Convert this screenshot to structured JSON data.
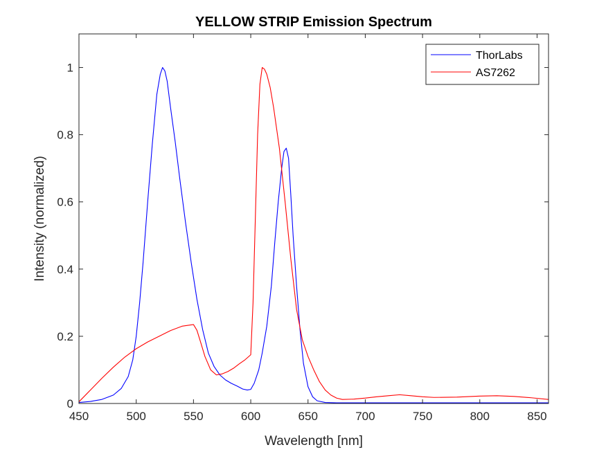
{
  "chart_data": {
    "type": "line",
    "title": "YELLOW STRIP Emission Spectrum",
    "xlabel": "Wavelength [nm]",
    "ylabel": "Intensity (normalized)",
    "xlim": [
      450,
      860
    ],
    "ylim": [
      0,
      1.1
    ],
    "xticks": [
      450,
      500,
      550,
      600,
      650,
      700,
      750,
      800,
      850
    ],
    "yticks": [
      0,
      0.2,
      0.4,
      0.6,
      0.8,
      1
    ],
    "ytick_labels": [
      "0",
      "0.2",
      "0.4",
      "0.6",
      "0.8",
      "1"
    ],
    "grid": false,
    "legend_position": "top-right",
    "series": [
      {
        "name": "ThorLabs",
        "color": "#0000ff",
        "x": [
          450,
          460,
          470,
          480,
          487,
          493,
          497,
          500,
          503,
          506,
          510,
          514,
          518,
          521,
          523,
          525,
          527,
          530,
          534,
          538,
          543,
          548,
          553,
          558,
          563,
          568,
          573,
          578,
          583,
          588,
          593,
          597,
          600,
          603,
          607,
          610,
          614,
          618,
          621,
          624,
          627,
          629,
          631,
          633,
          635,
          637,
          640,
          643,
          646,
          650,
          654,
          658,
          665,
          675,
          690,
          720,
          760,
          800,
          860
        ],
        "y": [
          0.003,
          0.006,
          0.012,
          0.025,
          0.045,
          0.08,
          0.13,
          0.2,
          0.3,
          0.42,
          0.6,
          0.77,
          0.92,
          0.98,
          1.0,
          0.99,
          0.96,
          0.88,
          0.78,
          0.67,
          0.54,
          0.42,
          0.31,
          0.22,
          0.15,
          0.11,
          0.085,
          0.07,
          0.06,
          0.052,
          0.043,
          0.04,
          0.042,
          0.06,
          0.1,
          0.15,
          0.23,
          0.35,
          0.48,
          0.6,
          0.7,
          0.75,
          0.76,
          0.73,
          0.62,
          0.5,
          0.35,
          0.22,
          0.12,
          0.05,
          0.02,
          0.008,
          0.003,
          0.002,
          0.002,
          0.002,
          0.002,
          0.002,
          0.002
        ]
      },
      {
        "name": "AS7262",
        "color": "#ff0000",
        "x": [
          450,
          460,
          470,
          480,
          490,
          500,
          510,
          520,
          530,
          540,
          550,
          553,
          556,
          560,
          565,
          570,
          575,
          580,
          585,
          590,
          595,
          600,
          602,
          604,
          606,
          608,
          610,
          612,
          614,
          617,
          620,
          625,
          630,
          635,
          640,
          645,
          650,
          655,
          660,
          665,
          670,
          675,
          680,
          690,
          700,
          710,
          720,
          730,
          740,
          750,
          760,
          780,
          800,
          815,
          830,
          845,
          860
        ],
        "y": [
          0.005,
          0.04,
          0.075,
          0.108,
          0.138,
          0.163,
          0.183,
          0.2,
          0.217,
          0.23,
          0.235,
          0.218,
          0.185,
          0.14,
          0.1,
          0.085,
          0.088,
          0.095,
          0.105,
          0.118,
          0.13,
          0.145,
          0.3,
          0.55,
          0.8,
          0.95,
          1.0,
          0.995,
          0.98,
          0.94,
          0.88,
          0.76,
          0.6,
          0.43,
          0.28,
          0.19,
          0.14,
          0.1,
          0.065,
          0.04,
          0.025,
          0.016,
          0.012,
          0.013,
          0.016,
          0.02,
          0.023,
          0.026,
          0.023,
          0.02,
          0.018,
          0.019,
          0.022,
          0.023,
          0.021,
          0.017,
          0.012
        ]
      }
    ]
  }
}
